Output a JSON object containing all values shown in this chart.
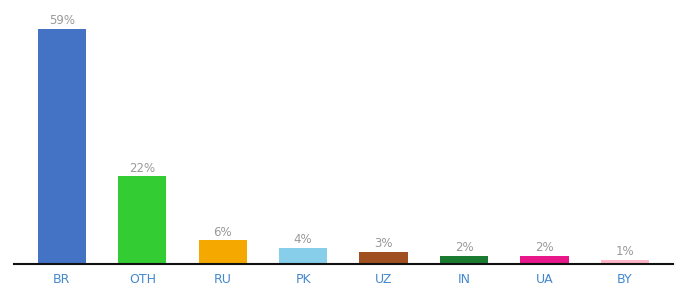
{
  "categories": [
    "BR",
    "OTH",
    "RU",
    "PK",
    "UZ",
    "IN",
    "UA",
    "BY"
  ],
  "values": [
    59,
    22,
    6,
    4,
    3,
    2,
    2,
    1
  ],
  "bar_colors": [
    "#4472c4",
    "#33cc33",
    "#f5a800",
    "#87ceeb",
    "#a05020",
    "#1a7a30",
    "#e8188a",
    "#ffb6c8"
  ],
  "labels": [
    "59%",
    "22%",
    "6%",
    "4%",
    "3%",
    "2%",
    "2%",
    "1%"
  ],
  "ylim": [
    0,
    64
  ],
  "background_color": "#ffffff",
  "label_color": "#999999",
  "tick_label_color": "#4488cc",
  "bar_width": 0.6,
  "label_fontsize": 8.5,
  "tick_fontsize": 9.0
}
